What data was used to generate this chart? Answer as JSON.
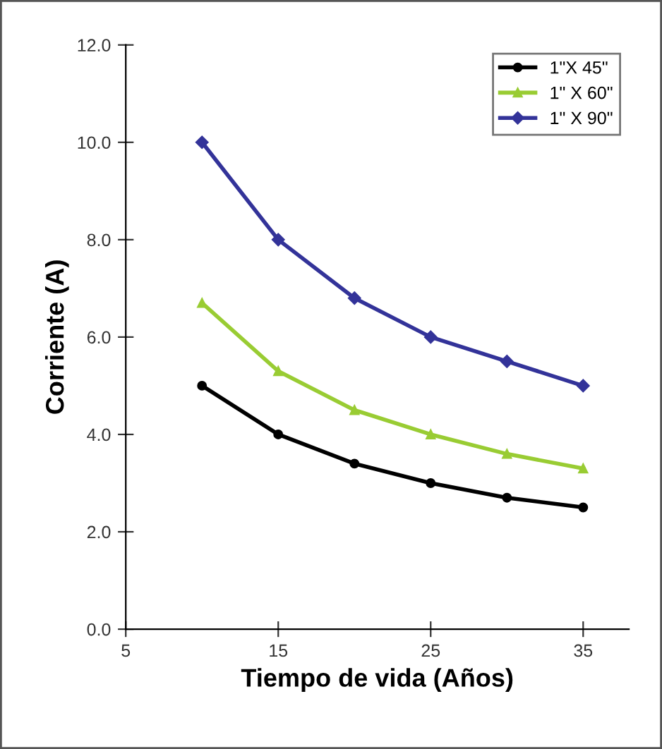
{
  "chart_data": {
    "type": "line",
    "xlabel": "Tiempo de vida (Años)",
    "ylabel": "Corriente (A)",
    "x": [
      10,
      15,
      20,
      25,
      30,
      35
    ],
    "series": [
      {
        "name": "1\"X 45\"",
        "color": "#000000",
        "marker": "circle",
        "values": [
          5.0,
          4.0,
          3.4,
          3.0,
          2.7,
          2.5
        ]
      },
      {
        "name": "1\" X 60\"",
        "color": "#99cc33",
        "marker": "triangle",
        "values": [
          6.7,
          5.3,
          4.5,
          4.0,
          3.6,
          3.3
        ]
      },
      {
        "name": "1\" X 90\"",
        "color": "#333399",
        "marker": "diamond",
        "values": [
          10.0,
          8.0,
          6.8,
          6.0,
          5.5,
          5.0
        ]
      }
    ],
    "xlim": [
      5,
      38
    ],
    "ylim": [
      0,
      12
    ],
    "xticks": [
      5,
      15,
      25,
      35
    ],
    "yticks": [
      {
        "value": 0,
        "label": "0.0"
      },
      {
        "value": 2,
        "label": "2.0"
      },
      {
        "value": 4,
        "label": "4.0"
      },
      {
        "value": 6,
        "label": "6.0"
      },
      {
        "value": 8,
        "label": "8.0"
      },
      {
        "value": 10,
        "label": "10.0"
      },
      {
        "value": 12,
        "label": "12.0"
      }
    ],
    "grid": false,
    "legend": "top right",
    "line_style": "solid"
  }
}
